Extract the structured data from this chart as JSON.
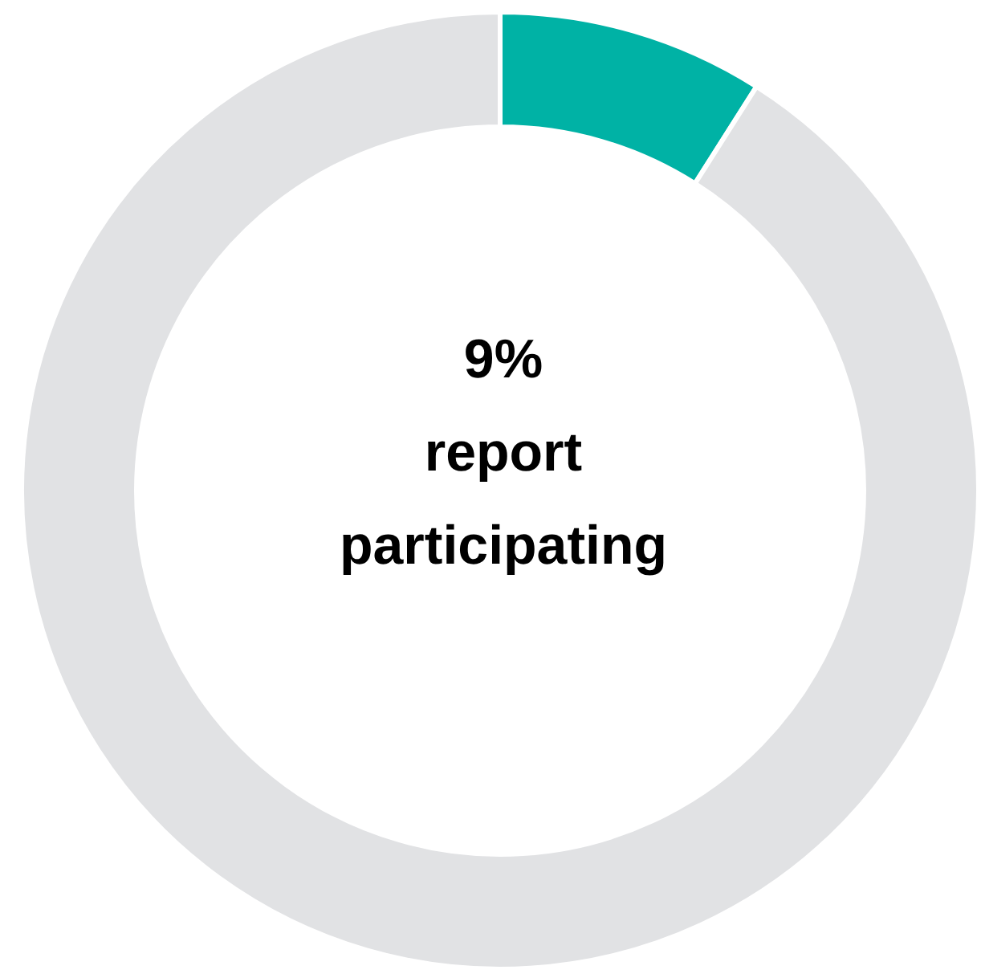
{
  "chart_data": {
    "type": "donut",
    "categories": [
      null,
      null
    ],
    "values": [
      9,
      91
    ],
    "colors": [
      "#00b2a5",
      "#e1e2e4"
    ],
    "annotations": [
      "9%\nreport\nparticipating"
    ],
    "legend": false
  }
}
